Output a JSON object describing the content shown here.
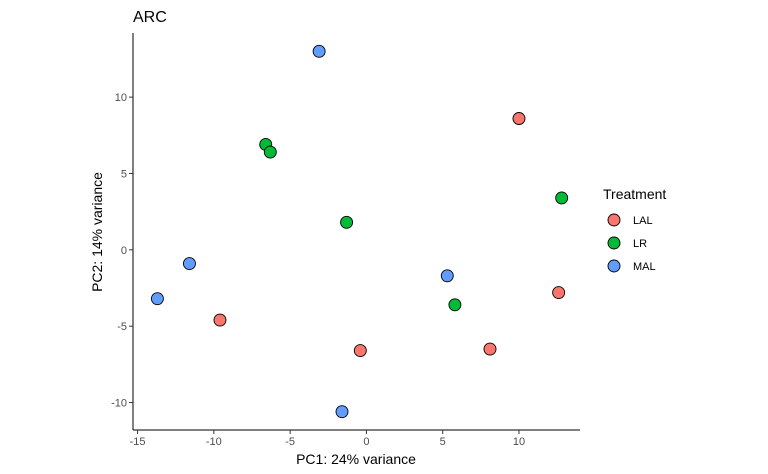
{
  "chart_data": {
    "type": "scatter",
    "title": "ARC",
    "xlabel": "PC1: 24% variance",
    "ylabel": "PC2: 14% variance",
    "xlim": [
      -15.3,
      14.0
    ],
    "ylim": [
      -11.8,
      14.2
    ],
    "xticks": [
      -15,
      -10,
      -5,
      0,
      5,
      10
    ],
    "yticks": [
      -10,
      -5,
      0,
      5,
      10
    ],
    "grid": false,
    "legend": {
      "title": "Treatment",
      "placement": "right"
    },
    "series": [
      {
        "name": "LAL",
        "color": "#F8766D",
        "points": [
          {
            "x": 10.0,
            "y": 8.6
          },
          {
            "x": 12.6,
            "y": -2.8
          },
          {
            "x": -9.6,
            "y": -4.6
          },
          {
            "x": -0.4,
            "y": -6.6
          },
          {
            "x": 8.1,
            "y": -6.5
          }
        ]
      },
      {
        "name": "LR",
        "color": "#00BA38",
        "points": [
          {
            "x": -6.6,
            "y": 6.9
          },
          {
            "x": -6.3,
            "y": 6.4
          },
          {
            "x": -1.3,
            "y": 1.8
          },
          {
            "x": 12.8,
            "y": 3.4
          },
          {
            "x": 5.8,
            "y": -3.6
          }
        ]
      },
      {
        "name": "MAL",
        "color": "#619CFF",
        "points": [
          {
            "x": -3.1,
            "y": 13.0
          },
          {
            "x": -11.6,
            "y": -0.9
          },
          {
            "x": -13.7,
            "y": -3.2
          },
          {
            "x": 5.3,
            "y": -1.7
          },
          {
            "x": -1.6,
            "y": -10.6
          }
        ]
      }
    ]
  }
}
